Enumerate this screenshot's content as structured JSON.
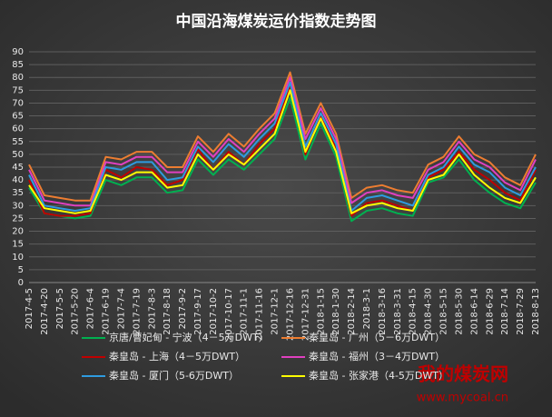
{
  "chart_data": {
    "type": "line",
    "title": "中国沿海煤炭运价指数走势图",
    "categories": [
      "2017-4-5",
      "2017-4-20",
      "2017-5-5",
      "2017-5-20",
      "2017-6-4",
      "2017-6-19",
      "2017-7-4",
      "2017-7-19",
      "2017-8-3",
      "2017-8-18",
      "2017-9-2",
      "2017-9-17",
      "2017-10-2",
      "2017-10-17",
      "2017-11-1",
      "2017-11-16",
      "2017-12-1",
      "2017-12-16",
      "2017-12-31",
      "2018-1-15",
      "2018-1-30",
      "2018-2-14",
      "2018-3-1",
      "2018-3-16",
      "2018-3-31",
      "2018-4-15",
      "2018-4-30",
      "2018-5-15",
      "2018-5-30",
      "2018-6-14",
      "2018-6-29",
      "2018-7-14",
      "2018-7-29",
      "2018-8-13"
    ],
    "series": [
      {
        "name": "京唐/曹妃甸 - 宁波（4－5万DWT）",
        "color": "#00b050",
        "values": [
          37,
          27,
          26,
          25,
          26,
          40,
          38,
          41,
          41,
          35,
          36,
          48,
          42,
          48,
          44,
          50,
          56,
          72,
          48,
          62,
          49,
          24,
          28,
          29,
          27,
          26,
          39,
          41,
          48,
          40,
          35,
          31,
          29,
          39
        ]
      },
      {
        "name": "秦皇岛 - 广州（5－6万DWT）",
        "color": "#ed7d31",
        "values": [
          46,
          34,
          33,
          32,
          32,
          49,
          48,
          51,
          51,
          45,
          45,
          57,
          51,
          58,
          53,
          60,
          66,
          82,
          58,
          70,
          58,
          33,
          37,
          38,
          36,
          35,
          46,
          49,
          57,
          50,
          47,
          41,
          38,
          50
        ]
      },
      {
        "name": "秦皇岛 - 上海（4－5万DWT）",
        "color": "#c00000",
        "values": [
          40,
          27,
          26,
          26,
          27,
          44,
          41,
          45,
          44,
          38,
          40,
          52,
          44,
          51,
          46,
          54,
          60,
          77,
          50,
          65,
          52,
          26,
          31,
          32,
          30,
          28,
          41,
          44,
          51,
          44,
          40,
          35,
          32,
          44
        ]
      },
      {
        "name": "秦皇岛 - 福州（3－4万DWT）",
        "color": "#e040c0",
        "values": [
          44,
          32,
          31,
          30,
          30,
          47,
          46,
          49,
          49,
          43,
          43,
          55,
          49,
          56,
          51,
          58,
          64,
          80,
          56,
          68,
          56,
          31,
          35,
          36,
          34,
          33,
          44,
          47,
          55,
          48,
          45,
          39,
          36,
          48
        ]
      },
      {
        "name": "秦皇岛 - 厦门（5-6万DWT）",
        "color": "#2e9be0",
        "values": [
          42,
          30,
          29,
          28,
          29,
          45,
          44,
          47,
          47,
          40,
          41,
          53,
          47,
          54,
          49,
          56,
          62,
          78,
          53,
          66,
          54,
          28,
          33,
          34,
          32,
          30,
          42,
          45,
          53,
          46,
          43,
          37,
          34,
          45
        ]
      },
      {
        "name": "秦皇岛 - 张家港（4-5万DWT）",
        "color": "#ffff00",
        "values": [
          38,
          29,
          28,
          27,
          28,
          42,
          40,
          43,
          43,
          37,
          38,
          50,
          44,
          50,
          46,
          52,
          58,
          75,
          51,
          64,
          51,
          27,
          30,
          31,
          29,
          28,
          40,
          42,
          50,
          42,
          37,
          33,
          31,
          41
        ]
      }
    ],
    "ylim": [
      0,
      90
    ],
    "yticks": [
      0,
      5,
      10,
      15,
      20,
      25,
      30,
      35,
      40,
      45,
      50,
      55,
      60,
      65,
      70,
      75,
      80,
      85,
      90
    ],
    "grid": true,
    "watermark": {
      "name": "我的煤炭网",
      "url": "www.mycoal.cn"
    }
  }
}
